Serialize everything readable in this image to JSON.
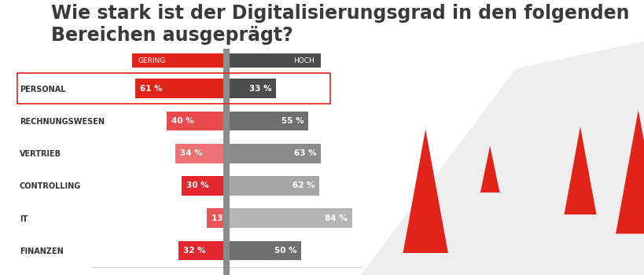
{
  "chart_data": {
    "type": "bar",
    "orientation": "horizontal",
    "title": "Wie stark ist der Digitalisierungsgrad in den folgenden Bereichen ausgeprägt?",
    "categories": [
      "PERSONAL",
      "RECHNUNGSWESEN",
      "VERTRIEB",
      "CONTROLLING",
      "IT",
      "FINANZEN"
    ],
    "series": [
      {
        "name": "GERING",
        "colors": [
          "#e2231a",
          "#e84a4e",
          "#ec7175",
          "#e2282e",
          "#e85458",
          "#e2282e"
        ],
        "values": [
          61,
          40,
          34,
          30,
          13,
          32
        ],
        "value_labels": [
          "61 %",
          "40 %",
          "34 %",
          "30 %",
          "13 %",
          "32 %"
        ]
      },
      {
        "name": "HOCH",
        "colors": [
          "#4d4d4d",
          "#6f6f6f",
          "#8a8a8a",
          "#a6a6a6",
          "#b5b5b5",
          "#6f6f6f"
        ],
        "values": [
          33,
          55,
          63,
          62,
          84,
          50
        ],
        "value_labels": [
          "33 %",
          "55 %",
          "63 %",
          "62 %",
          "84 %",
          "50 %"
        ]
      }
    ],
    "xlim": [
      0,
      90
    ],
    "xticks": [],
    "data_labels": true,
    "tick_labels": "y"
  }
}
